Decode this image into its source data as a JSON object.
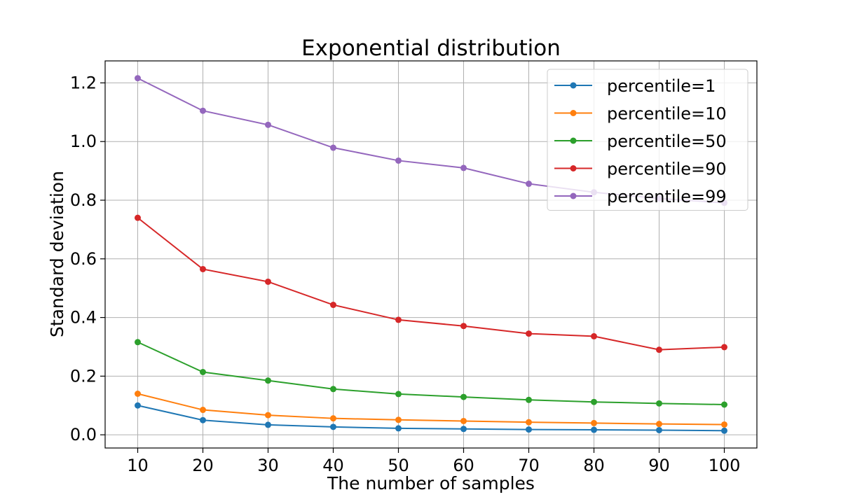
{
  "chart_data": {
    "type": "line",
    "title": "Exponential distribution",
    "xlabel": "The number of samples",
    "ylabel": "Standard deviation",
    "x": [
      10,
      20,
      30,
      40,
      50,
      60,
      70,
      80,
      90,
      100
    ],
    "xticks": [
      "10",
      "20",
      "30",
      "40",
      "50",
      "60",
      "70",
      "80",
      "90",
      "100"
    ],
    "yticks": [
      "0.0",
      "0.2",
      "0.4",
      "0.6",
      "0.8",
      "1.0",
      "1.2"
    ],
    "ytick_values": [
      0.0,
      0.2,
      0.4,
      0.6,
      0.8,
      1.0,
      1.2
    ],
    "xlim": [
      5,
      105
    ],
    "ylim": [
      -0.045,
      1.275
    ],
    "grid": true,
    "legend_position": "top-right",
    "series": [
      {
        "name": "percentile=1",
        "color": "#1f77b4",
        "values": [
          0.1,
          0.05,
          0.034,
          0.027,
          0.022,
          0.02,
          0.018,
          0.017,
          0.016,
          0.014
        ]
      },
      {
        "name": "percentile=10",
        "color": "#ff7f0e",
        "values": [
          0.14,
          0.085,
          0.067,
          0.056,
          0.051,
          0.047,
          0.043,
          0.04,
          0.037,
          0.035
        ]
      },
      {
        "name": "percentile=50",
        "color": "#2ca02c",
        "values": [
          0.316,
          0.214,
          0.185,
          0.156,
          0.139,
          0.129,
          0.119,
          0.112,
          0.107,
          0.103
        ]
      },
      {
        "name": "percentile=90",
        "color": "#d62728",
        "values": [
          0.74,
          0.565,
          0.522,
          0.443,
          0.392,
          0.371,
          0.345,
          0.336,
          0.29,
          0.299
        ]
      },
      {
        "name": "percentile=99",
        "color": "#9467bd",
        "values": [
          1.216,
          1.105,
          1.057,
          0.979,
          0.935,
          0.91,
          0.856,
          0.827,
          0.806,
          0.791
        ]
      }
    ]
  }
}
